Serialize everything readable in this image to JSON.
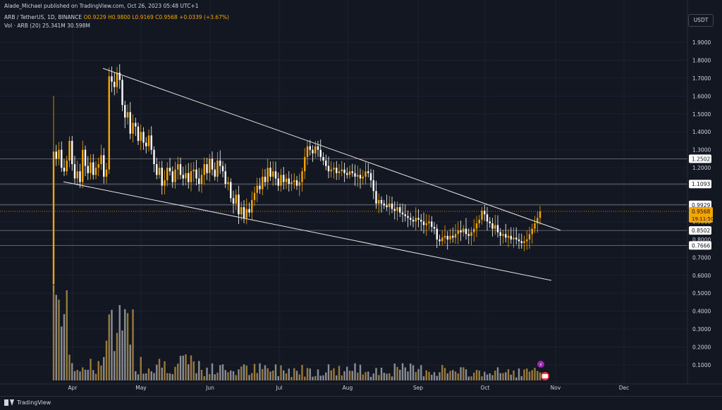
{
  "header": {
    "publisher": "Alade_Michael published on TradingView.com, Oct 26, 2023 05:48 UTC+1",
    "symbol": "ARB / TetherUS, 1D, BINANCE",
    "open": "O0.9229",
    "high": "H0.9800",
    "low": "L0.9169",
    "close": "C0.9568",
    "change": "+0.0339 (+3.67%)",
    "vol_label": "Vol · ARB (20)",
    "vol_value": "25.341M",
    "vol_ma": "30.598M"
  },
  "currency_button": "USDT",
  "footer": {
    "brand": "TradingView"
  },
  "colors": {
    "up": "#f7a600",
    "down": "#ffffff",
    "background": "#131722",
    "text": "#d1d4dc"
  },
  "chart_data": {
    "type": "candlestick",
    "y_axis_ticks": [
      "1.9000",
      "1.8000",
      "1.7000",
      "1.6000",
      "1.5000",
      "1.4000",
      "1.3000",
      "1.2000",
      "1.1000",
      "1.0000",
      "0.9000",
      "0.8000",
      "0.7000",
      "0.6000",
      "0.5000",
      "0.4000",
      "0.3000",
      "0.2000",
      "0.1000"
    ],
    "x_axis_ticks": [
      "Apr",
      "May",
      "Jun",
      "Jul",
      "Aug",
      "Sep",
      "Oct",
      "Nov",
      "Dec"
    ],
    "ylim": [
      0.05,
      1.98
    ],
    "horizontal_levels": [
      "1.2502",
      "1.1093",
      "0.9929",
      "0.8502",
      "0.7666"
    ],
    "current_price": "0.9568",
    "countdown": "19:11:50",
    "trendlines": [
      {
        "name": "upper",
        "from": [
          "2023-04-13",
          1.75
        ],
        "to": [
          "2023-10-30",
          0.85
        ]
      },
      {
        "name": "lower",
        "from": [
          "2023-03-25",
          1.12
        ],
        "to": [
          "2023-10-31",
          0.57
        ]
      }
    ],
    "candles_close": [
      1.29,
      1.25,
      1.3,
      1.2,
      1.18,
      1.24,
      1.35,
      1.22,
      1.14,
      1.18,
      1.12,
      1.3,
      1.21,
      1.17,
      1.23,
      1.16,
      1.2,
      1.22,
      1.27,
      1.15,
      1.19,
      1.71,
      1.68,
      1.65,
      1.73,
      1.69,
      1.55,
      1.48,
      1.51,
      1.39,
      1.45,
      1.43,
      1.35,
      1.4,
      1.34,
      1.32,
      1.38,
      1.3,
      1.22,
      1.16,
      1.2,
      1.1,
      1.13,
      1.2,
      1.18,
      1.12,
      1.19,
      1.22,
      1.16,
      1.14,
      1.17,
      1.12,
      1.18,
      1.19,
      1.14,
      1.11,
      1.16,
      1.22,
      1.17,
      1.25,
      1.19,
      1.15,
      1.24,
      1.21,
      1.18,
      1.11,
      1.12,
      1.03,
      1.0,
      1.05,
      0.94,
      0.98,
      0.92,
      0.97,
      0.95,
      1.02,
      1.06,
      1.1,
      1.08,
      1.15,
      1.12,
      1.2,
      1.15,
      1.18,
      1.14,
      1.1,
      1.16,
      1.12,
      1.14,
      1.11,
      1.12,
      1.13,
      1.1,
      1.12,
      1.18,
      1.26,
      1.32,
      1.3,
      1.28,
      1.32,
      1.3,
      1.26,
      1.24,
      1.21,
      1.18,
      1.19,
      1.2,
      1.17,
      1.18,
      1.19,
      1.17,
      1.16,
      1.18,
      1.17,
      1.15,
      1.16,
      1.14,
      1.15,
      1.18,
      1.17,
      1.13,
      1.07,
      1.0,
      1.02,
      1.0,
      0.99,
      0.98,
      1.0,
      0.97,
      0.96,
      0.98,
      0.95,
      0.94,
      0.93,
      0.92,
      0.91,
      0.9,
      0.92,
      0.91,
      0.9,
      0.88,
      0.89,
      0.9,
      0.87,
      0.86,
      0.8,
      0.79,
      0.81,
      0.82,
      0.8,
      0.82,
      0.81,
      0.83,
      0.85,
      0.84,
      0.86,
      0.83,
      0.82,
      0.84,
      0.86,
      0.89,
      0.91,
      0.96,
      0.94,
      0.9,
      0.89,
      0.86,
      0.88,
      0.84,
      0.82,
      0.83,
      0.81,
      0.82,
      0.8,
      0.81,
      0.8,
      0.79,
      0.78,
      0.79,
      0.8,
      0.83,
      0.86,
      0.89,
      0.92,
      0.9568
    ],
    "volume_label": "Vol · ARB (20)"
  }
}
